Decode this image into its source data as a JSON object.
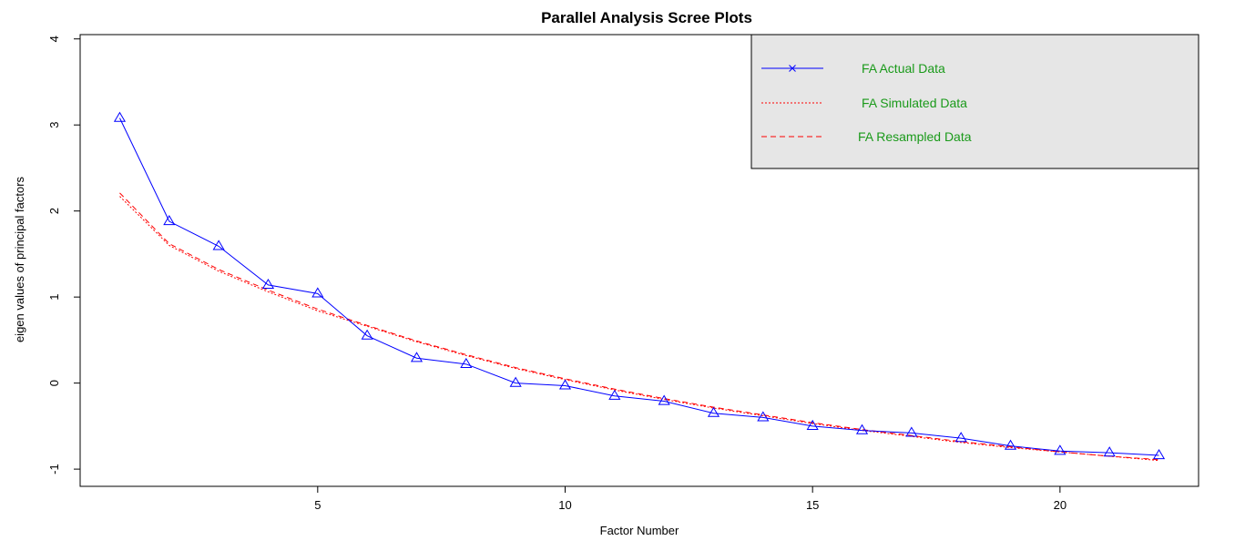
{
  "chart_data": {
    "type": "line",
    "title": "Parallel Analysis Scree Plots",
    "xlabel": "Factor Number",
    "ylabel": "eigen values of principal factors",
    "xlim": [
      0.2,
      22.8
    ],
    "ylim": [
      -1.2,
      4.05
    ],
    "x_ticks": [
      5,
      10,
      15,
      20
    ],
    "y_ticks": [
      -1,
      0,
      1,
      2,
      3,
      4
    ],
    "grid": false,
    "legend_position": "top-right",
    "x": [
      1,
      2,
      3,
      4,
      5,
      6,
      7,
      8,
      9,
      10,
      11,
      12,
      13,
      14,
      15,
      16,
      17,
      18,
      19,
      20,
      21,
      22
    ],
    "series": [
      {
        "name": "FA  Actual Data",
        "color": "#0000ff",
        "line_style": "solid",
        "marker": "triangle-open",
        "legend_marker": "x",
        "values": [
          3.08,
          1.88,
          1.59,
          1.14,
          1.04,
          0.55,
          0.29,
          0.22,
          0.0,
          -0.03,
          -0.15,
          -0.21,
          -0.35,
          -0.4,
          -0.5,
          -0.55,
          -0.58,
          -0.64,
          -0.73,
          -0.79,
          -0.81,
          -0.84
        ]
      },
      {
        "name": "FA  Simulated Data",
        "color": "#ff0000",
        "line_style": "dotted",
        "values": [
          2.17,
          1.6,
          1.3,
          1.06,
          0.84,
          0.66,
          0.48,
          0.32,
          0.17,
          0.04,
          -0.08,
          -0.19,
          -0.29,
          -0.38,
          -0.47,
          -0.55,
          -0.62,
          -0.69,
          -0.75,
          -0.8,
          -0.85,
          -0.9
        ]
      },
      {
        "name": "FA  Resampled Data",
        "color": "#ff0000",
        "line_style": "dashed",
        "values": [
          2.21,
          1.62,
          1.32,
          1.08,
          0.86,
          0.67,
          0.49,
          0.33,
          0.18,
          0.05,
          -0.07,
          -0.18,
          -0.28,
          -0.37,
          -0.46,
          -0.54,
          -0.61,
          -0.68,
          -0.74,
          -0.8,
          -0.85,
          -0.89
        ]
      }
    ],
    "legend_background": "#e6e6e6"
  }
}
